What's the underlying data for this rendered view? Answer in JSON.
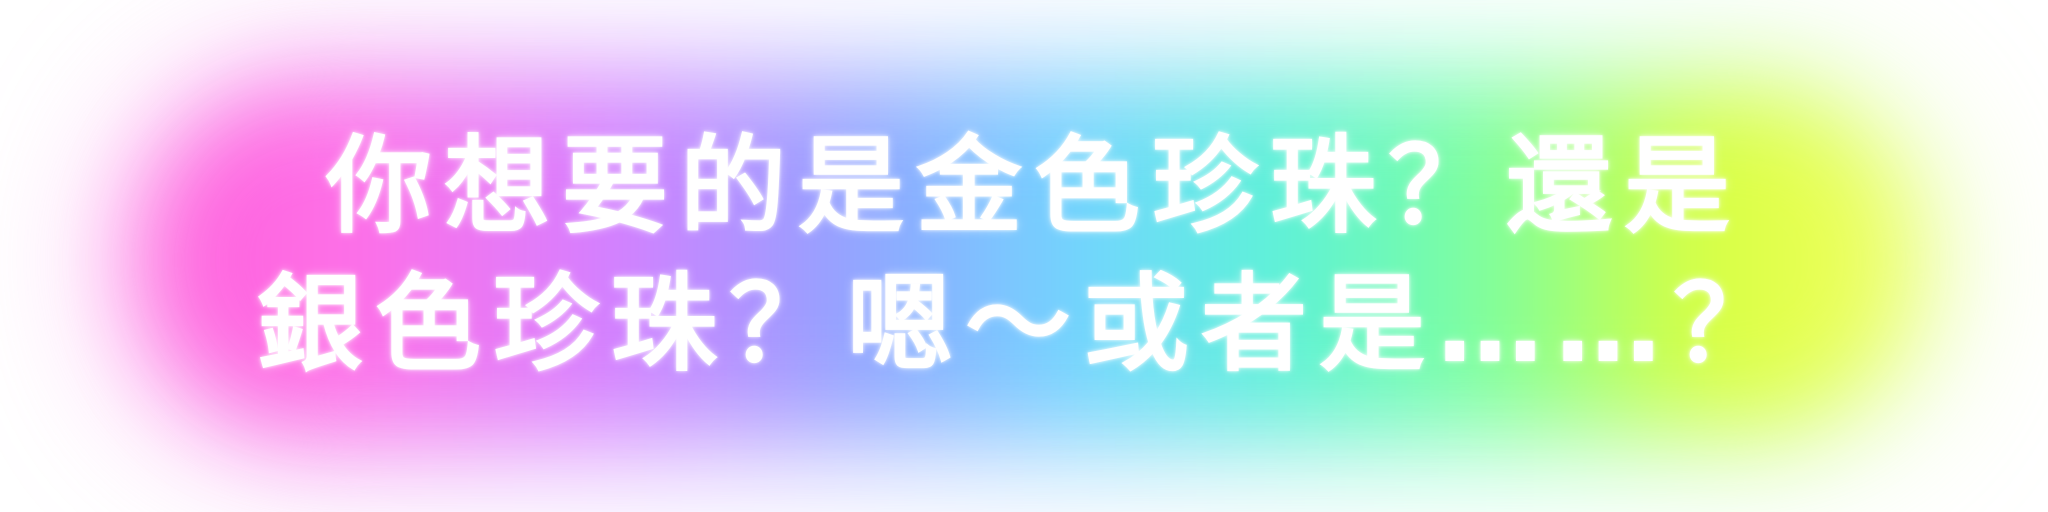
{
  "caption": {
    "line1": "你想要的是金色珍珠？還是",
    "line2": "銀色珍珠？嗯～或者是……？"
  },
  "colors": {
    "text": "#ffffff",
    "glow_gradient": [
      "#ff5ad8",
      "#d57cff",
      "#8ea2ff",
      "#6fd6ff",
      "#58f2d8",
      "#7cff9a",
      "#d8ff3a"
    ],
    "background": "#ffffff"
  }
}
